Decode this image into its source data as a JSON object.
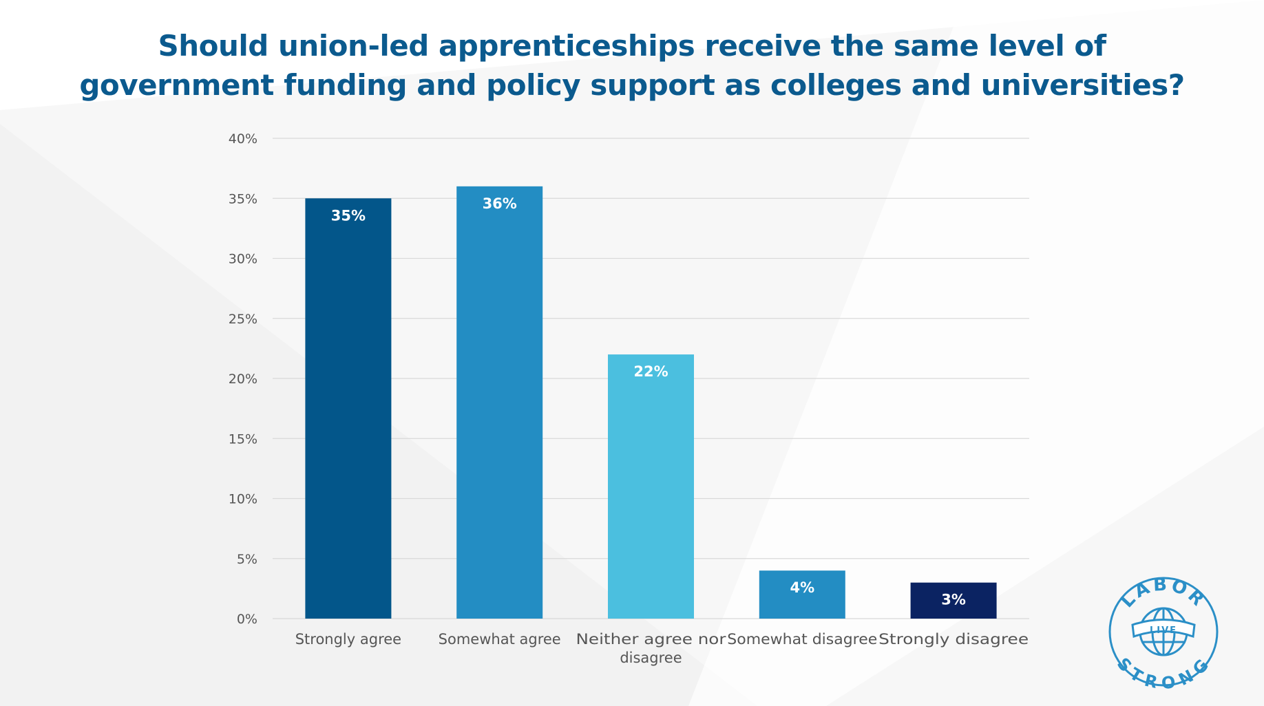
{
  "chart_data": {
    "type": "bar",
    "title_lines": [
      "Should union-led apprenticeships receive the same level of",
      "government funding and policy support as colleges and universities?"
    ],
    "categories": [
      [
        "Strongly agree"
      ],
      [
        "Somewhat agree"
      ],
      [
        "Neither agree nor",
        "disagree"
      ],
      [
        "Somewhat disagree"
      ],
      [
        "Strongly disagree"
      ]
    ],
    "values": [
      35,
      36,
      22,
      4,
      3
    ],
    "data_labels": [
      "35%",
      "36%",
      "22%",
      "4%",
      "3%"
    ],
    "bar_colors": [
      "#03568a",
      "#238dc3",
      "#4bbfdf",
      "#238dc3",
      "#0b2362"
    ],
    "yticks": [
      0,
      5,
      10,
      15,
      20,
      25,
      30,
      35,
      40
    ],
    "ytick_labels": [
      "0%",
      "5%",
      "10%",
      "15%",
      "20%",
      "25%",
      "30%",
      "35%",
      "40%"
    ],
    "ylim": [
      0,
      40
    ],
    "xlabel": "",
    "ylabel": "",
    "grid": true,
    "legend": "none"
  },
  "logo": {
    "top_text": "LABOR",
    "ribbon_text": "LIVE",
    "bottom_text": "STRONG",
    "color": "#2b8fc7"
  },
  "colors": {
    "title": "#0b5a8e",
    "tick_text": "#555555",
    "grid": "#d9d9d9"
  }
}
